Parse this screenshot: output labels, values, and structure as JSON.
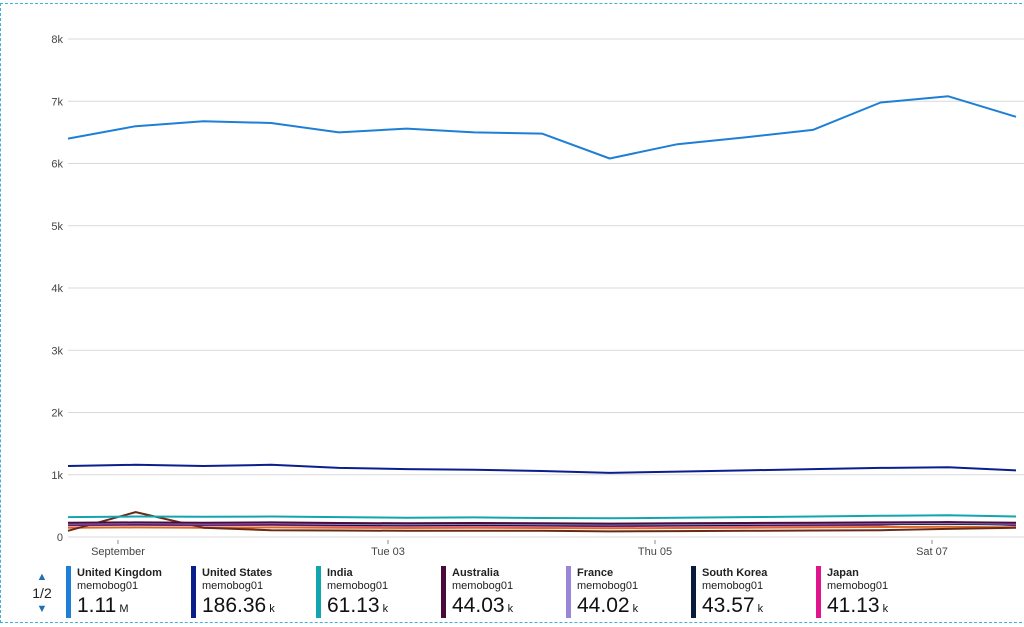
{
  "chart_data": {
    "type": "line",
    "ylim": [
      0,
      8000
    ],
    "y_ticks": [
      {
        "value": 0,
        "label": "0"
      },
      {
        "value": 1000,
        "label": "1k"
      },
      {
        "value": 2000,
        "label": "2k"
      },
      {
        "value": 3000,
        "label": "3k"
      },
      {
        "value": 4000,
        "label": "4k"
      },
      {
        "value": 5000,
        "label": "5k"
      },
      {
        "value": 6000,
        "label": "6k"
      },
      {
        "value": 7000,
        "label": "7k"
      },
      {
        "value": 8000,
        "label": "8k"
      }
    ],
    "x_ticks": [
      "September",
      "Tue 03",
      "Thu 05",
      "Sat 07"
    ],
    "x": [
      "Sep 01",
      "Sep 01 12:00",
      "Sep 02",
      "Sep 02 12:00",
      "Sep 03",
      "Sep 03 12:00",
      "Sep 04",
      "Sep 04 12:00",
      "Sep 05",
      "Sep 05 12:00",
      "Sep 06",
      "Sep 06 12:00",
      "Sep 07",
      "Sep 07 12:00",
      "Sep 08"
    ],
    "grid": true,
    "series": [
      {
        "name": "United Kingdom",
        "color": "#1e7fd6",
        "values": [
          6400,
          6600,
          6680,
          6650,
          6500,
          6560,
          6500,
          6480,
          6080,
          6310,
          6420,
          6540,
          6980,
          7080,
          6750
        ]
      },
      {
        "name": "United States",
        "color": "#0b1f8c",
        "values": [
          1140,
          1160,
          1140,
          1160,
          1110,
          1090,
          1080,
          1060,
          1030,
          1050,
          1070,
          1090,
          1110,
          1120,
          1070
        ]
      },
      {
        "name": "India",
        "color": "#12a5b0",
        "values": [
          320,
          330,
          325,
          330,
          320,
          310,
          315,
          305,
          300,
          310,
          320,
          330,
          340,
          350,
          330
        ]
      },
      {
        "name": "Australia",
        "color": "#4a0a3a",
        "values": [
          230,
          235,
          230,
          235,
          225,
          220,
          225,
          220,
          215,
          220,
          225,
          230,
          235,
          240,
          230
        ]
      },
      {
        "name": "France",
        "color": "#9a86d6",
        "values": [
          215,
          220,
          215,
          220,
          210,
          205,
          210,
          205,
          200,
          205,
          210,
          215,
          220,
          225,
          215
        ]
      },
      {
        "name": "South Korea",
        "color": "#0a1a3a",
        "values": [
          200,
          205,
          200,
          205,
          195,
          190,
          195,
          190,
          185,
          190,
          195,
          200,
          205,
          210,
          200
        ]
      },
      {
        "name": "Japan",
        "color": "#e0148c",
        "values": [
          190,
          195,
          190,
          195,
          185,
          180,
          185,
          180,
          175,
          180,
          185,
          190,
          195,
          240,
          190
        ]
      },
      {
        "name": "",
        "color": "#6b2a14",
        "values": [
          100,
          400,
          150,
          110,
          105,
          100,
          100,
          100,
          90,
          95,
          100,
          105,
          110,
          130,
          150
        ]
      },
      {
        "name": "",
        "color": "#d96a2a",
        "values": [
          150,
          155,
          150,
          155,
          150,
          145,
          150,
          145,
          140,
          145,
          150,
          155,
          160,
          165,
          155
        ]
      }
    ]
  },
  "legend": {
    "page": "1/2",
    "items": [
      {
        "name": "United Kingdom",
        "source": "memobog01",
        "value": "1.11",
        "unit": "M",
        "color": "#1e7fd6"
      },
      {
        "name": "United States",
        "source": "memobog01",
        "value": "186.36",
        "unit": "k",
        "color": "#0b1f8c"
      },
      {
        "name": "India",
        "source": "memobog01",
        "value": "61.13",
        "unit": "k",
        "color": "#12a5b0"
      },
      {
        "name": "Australia",
        "source": "memobog01",
        "value": "44.03",
        "unit": "k",
        "color": "#4a0a3a"
      },
      {
        "name": "France",
        "source": "memobog01",
        "value": "44.02",
        "unit": "k",
        "color": "#9a86d6"
      },
      {
        "name": "South Korea",
        "source": "memobog01",
        "value": "43.57",
        "unit": "k",
        "color": "#0a1a3a"
      },
      {
        "name": "Japan",
        "source": "memobog01",
        "value": "41.13",
        "unit": "k",
        "color": "#e0148c"
      }
    ]
  }
}
